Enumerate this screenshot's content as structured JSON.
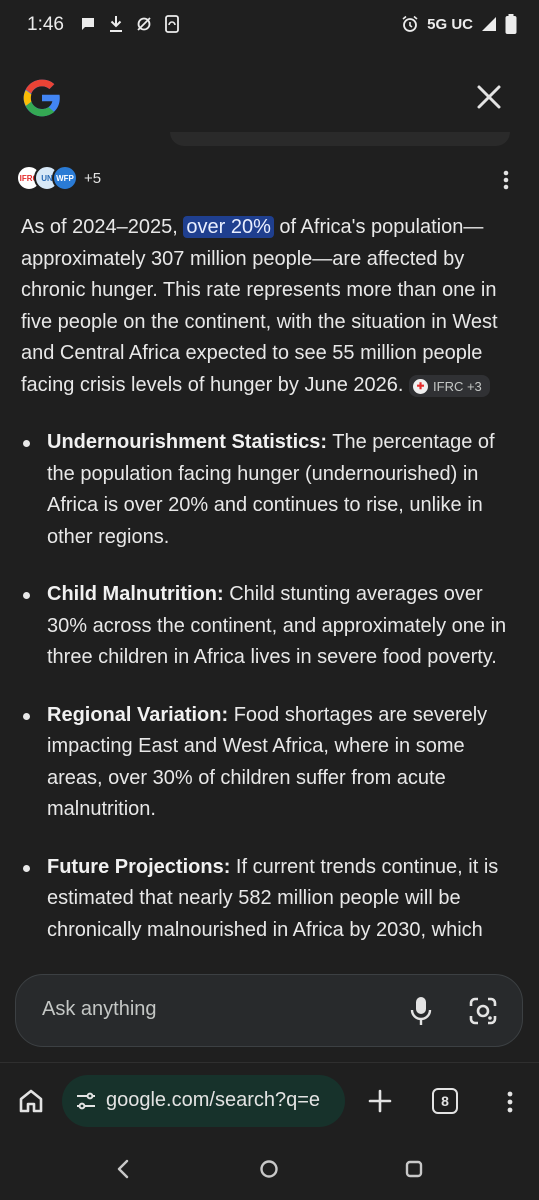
{
  "status_bar": {
    "time": "1:46",
    "network": "5G UC"
  },
  "sources": {
    "icons": [
      "IFRC",
      "UN",
      "WFP"
    ],
    "more": "+5"
  },
  "answer": {
    "intro_before": "As of 2024–2025, ",
    "intro_highlight": "over 20%",
    "intro_after": " of Africa's population—approximately 307 million people—are affected by chronic hunger. This rate represents more than one in five people on the continent, with the situation in West and Central Africa expected to see 55 million people facing crisis levels of hunger by June 2026.",
    "citation": "IFRC +3",
    "bullets": [
      {
        "title": "Undernourishment Statistics:",
        "text": " The percentage of the population facing hunger (undernourished) in Africa is over 20% and continues to rise, unlike in other regions."
      },
      {
        "title": "Child Malnutrition:",
        "text": " Child stunting averages over 30% across the continent, and approximately one in three children in Africa lives in severe food poverty."
      },
      {
        "title": "Regional Variation:",
        "text": " Food shortages are severely impacting East and West Africa, where in some areas, over 30% of children suffer from acute malnutrition."
      },
      {
        "title": "Future Projections:",
        "text": " If current trends continue, it is estimated that nearly 582 million people will be chronically malnourished in Africa by 2030, which"
      }
    ]
  },
  "ask_bar": {
    "placeholder": "Ask anything"
  },
  "browser": {
    "url": "google.com/search?q=e",
    "tab_count": "8"
  },
  "colors": {
    "background": "#1f1f1f",
    "highlight": "#1f3f8f",
    "url_pill": "#17322b"
  }
}
